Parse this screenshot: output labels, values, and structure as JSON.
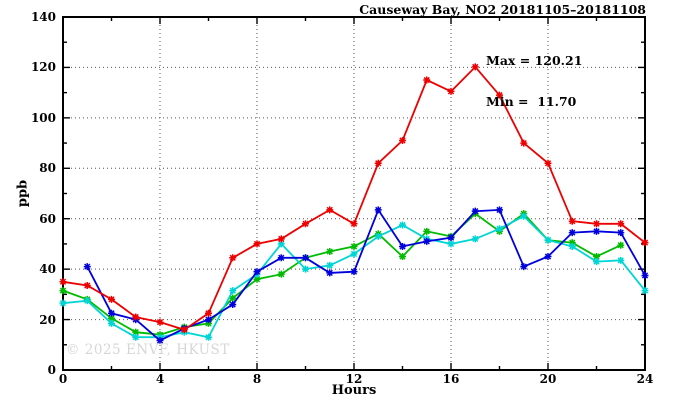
{
  "title": "Causeway Bay, NO2 20181105–20181108",
  "annotation": {
    "max_label": "Max = 120.21",
    "min_label": "Min =  11.70"
  },
  "watermark": "© 2025 ENVF, HKUST",
  "chart_data": {
    "type": "line",
    "title": "Causeway Bay, NO2 20181105–20181108",
    "xlabel": "Hours",
    "ylabel": "ppb",
    "xlim": [
      0,
      24
    ],
    "ylim": [
      0,
      140
    ],
    "x_major_ticks": [
      0,
      4,
      8,
      12,
      16,
      20,
      24
    ],
    "x_minor_ticks": [
      2,
      6,
      10,
      14,
      18,
      22
    ],
    "y_major_ticks": [
      0,
      20,
      40,
      60,
      80,
      100,
      120,
      140
    ],
    "y_minor_ticks": [
      10,
      30,
      50,
      70,
      90,
      110,
      130
    ],
    "grid": true,
    "legend_position": "none",
    "max": 120.21,
    "min": 11.7,
    "marker": "asterisk",
    "x": [
      0,
      1,
      2,
      3,
      4,
      5,
      6,
      7,
      8,
      9,
      10,
      11,
      12,
      13,
      14,
      15,
      16,
      17,
      18,
      19,
      20,
      21,
      22,
      23,
      24
    ],
    "series": [
      {
        "name": "red",
        "color": "#ee0000",
        "values": [
          35,
          33.5,
          28,
          21,
          19,
          16,
          22.5,
          44.5,
          50,
          52,
          58,
          63.5,
          58,
          82,
          91,
          115,
          110.5,
          120.2,
          109,
          90,
          82,
          59,
          58,
          58,
          50.5
        ]
      },
      {
        "name": "blue",
        "color": "#0000dd",
        "values": [
          null,
          41,
          22.5,
          20,
          11.7,
          16.5,
          20,
          26,
          39,
          44.5,
          44.5,
          38.5,
          39,
          63.5,
          49,
          51,
          52.5,
          63,
          63.5,
          41,
          45,
          54.5,
          55,
          54.5,
          37.5
        ]
      },
      {
        "name": "cyan",
        "color": "#00d5d5",
        "values": [
          26.5,
          27.5,
          18.5,
          13,
          13,
          15,
          13,
          31.5,
          38,
          50,
          40,
          41.5,
          46,
          53,
          57.5,
          52,
          50,
          52,
          56,
          61,
          51.5,
          49,
          43,
          43.5,
          31.5
        ]
      },
      {
        "name": "green",
        "color": "#00bb00",
        "values": [
          31.5,
          28,
          20.5,
          15,
          14,
          17,
          18.5,
          28.5,
          36,
          38,
          44.5,
          47,
          49,
          54,
          45,
          55,
          53,
          62,
          55,
          62,
          51.5,
          50.5,
          45,
          49.5,
          null
        ]
      }
    ]
  }
}
